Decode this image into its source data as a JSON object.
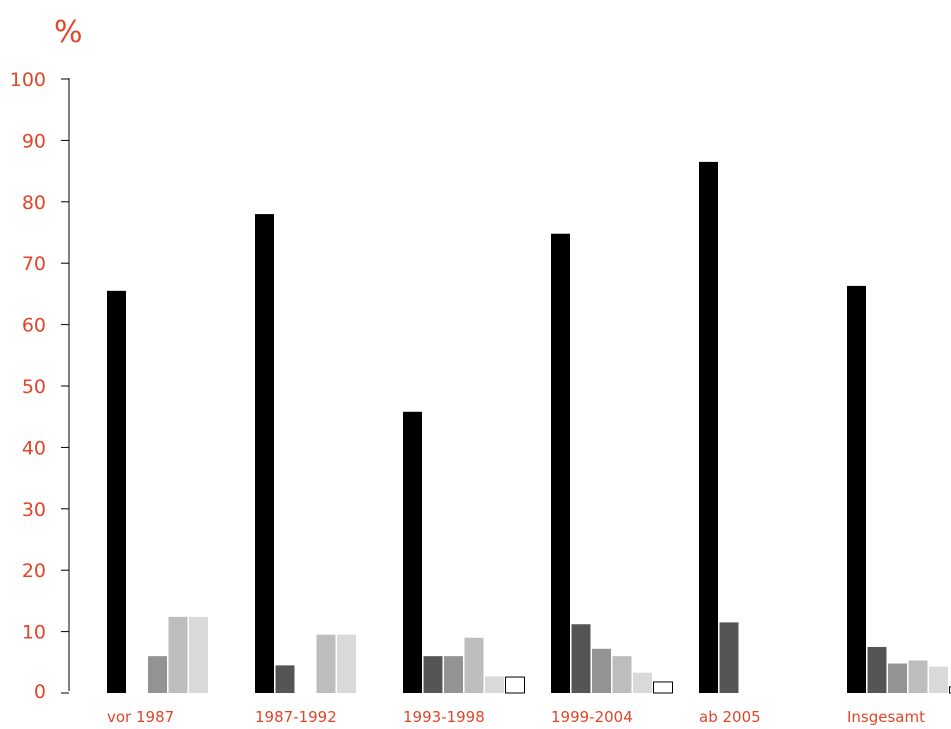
{
  "chart_data": {
    "type": "bar",
    "unit_label": "%",
    "categories": [
      "vor 1987",
      "1987-1992",
      "1993-1998",
      "1999-2004",
      "ab 2005",
      "Insgesamt"
    ],
    "yticks": [
      "0",
      "10",
      "20",
      "30",
      "40",
      "50",
      "60",
      "70",
      "80",
      "90",
      "100"
    ],
    "ylim": [
      0,
      100
    ],
    "grid": false,
    "series": [
      {
        "color": "#000000",
        "values": [
          65.5,
          78,
          45.8,
          74.8,
          86.5,
          66.3
        ]
      },
      {
        "color": "#555555",
        "values": [
          null,
          4.5,
          6,
          11.2,
          11.5,
          7.5
        ]
      },
      {
        "color": "#939393",
        "values": [
          6,
          null,
          6,
          7.2,
          null,
          4.8
        ]
      },
      {
        "color": "#bdbdbd",
        "values": [
          12.4,
          9.5,
          9,
          6,
          null,
          5.3
        ]
      },
      {
        "color": "#d9d9d9",
        "values": [
          12.4,
          9.5,
          2.7,
          3.3,
          null,
          4.3
        ]
      },
      {
        "color": "#ffffff",
        "outline": "#000000",
        "values": [
          null,
          null,
          2.6,
          1.8,
          null,
          1
        ]
      }
    ]
  }
}
